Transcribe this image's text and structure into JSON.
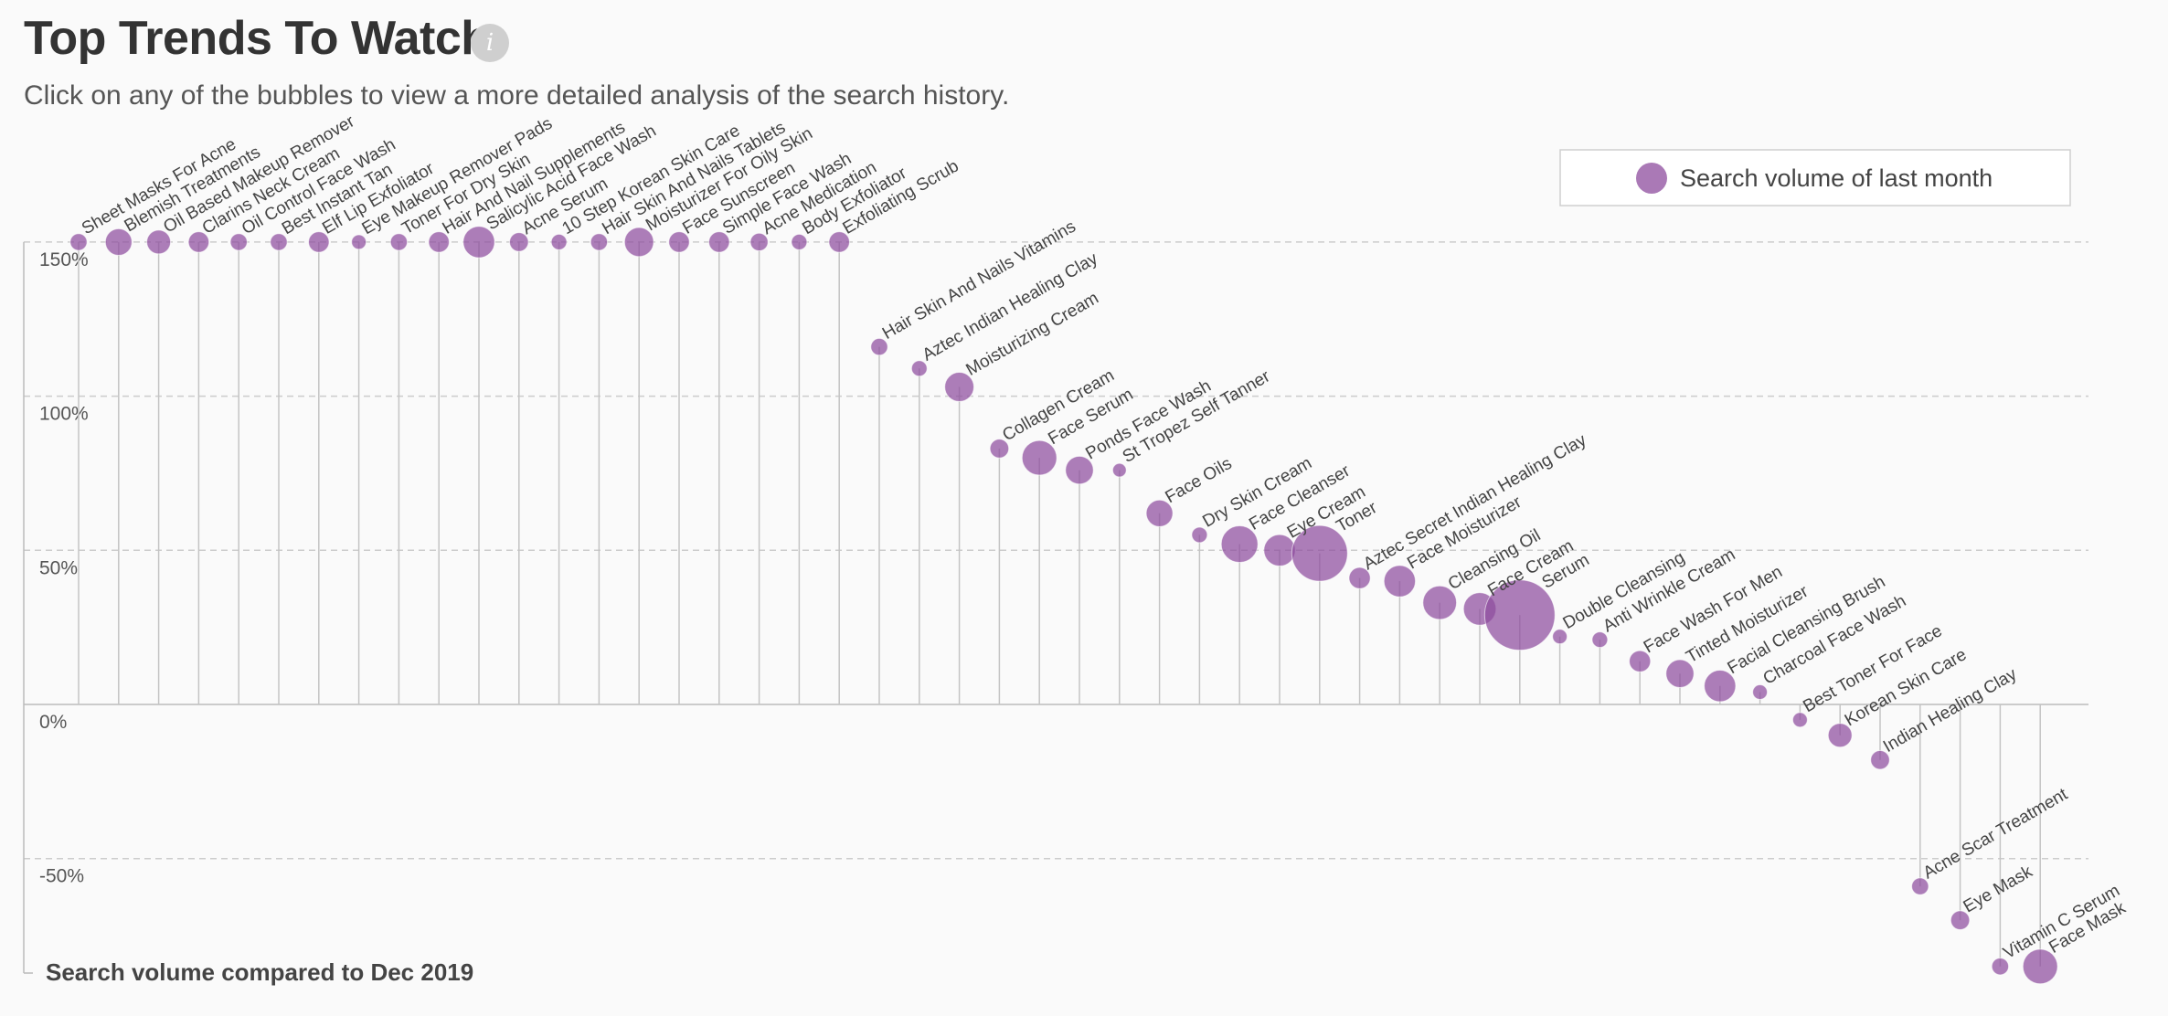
{
  "header": {
    "title": "Top Trends To Watch",
    "subtitle": "Click on any of the bubbles to view a more detailed analysis of the search history.",
    "info_icon": "info-icon"
  },
  "colors": {
    "bubble": "#8e4c9e",
    "grid": "#cccccc",
    "stem": "#c4c4c4",
    "axis": "#bbbbbb"
  },
  "chart_data": {
    "type": "scatter",
    "title": "Top Trends To Watch",
    "ylabel": "Search volume compared to Dec 2019",
    "ylim": [
      -85,
      150
    ],
    "yticks": [
      {
        "value": 150,
        "label": "150%"
      },
      {
        "value": 100,
        "label": "100%"
      },
      {
        "value": 50,
        "label": "50%"
      },
      {
        "value": 0,
        "label": "0%"
      },
      {
        "value": -50,
        "label": "-50%"
      }
    ],
    "grid": true,
    "legend": {
      "position": "top-right",
      "label": "Search volume of last month"
    },
    "points": [
      {
        "name": "Sheet Masks For Acne",
        "y": 150,
        "size": 2
      },
      {
        "name": "Blemish Treatments",
        "y": 150,
        "size": 5
      },
      {
        "name": "Oil Based Makeup Remover",
        "y": 150,
        "size": 4
      },
      {
        "name": "Clarins Neck Cream",
        "y": 150,
        "size": 3
      },
      {
        "name": "Oil Control Face Wash",
        "y": 150,
        "size": 2
      },
      {
        "name": "Best Instant Tan",
        "y": 150,
        "size": 2
      },
      {
        "name": "Elf Lip Exfoliator",
        "y": 150,
        "size": 3
      },
      {
        "name": "Eye Makeup Remover Pads",
        "y": 150,
        "size": 1.5
      },
      {
        "name": "Toner For Dry Skin",
        "y": 150,
        "size": 2
      },
      {
        "name": "Hair And Nail Supplements",
        "y": 150,
        "size": 3
      },
      {
        "name": "Salicylic Acid Face Wash",
        "y": 150,
        "size": 7
      },
      {
        "name": "Acne Serum",
        "y": 150,
        "size": 2.5
      },
      {
        "name": "10 Step Korean Skin Care",
        "y": 150,
        "size": 1.7
      },
      {
        "name": "Hair Skin And Nails Tablets",
        "y": 150,
        "size": 2
      },
      {
        "name": "Moisturizer For Oily Skin",
        "y": 150,
        "size": 6
      },
      {
        "name": "Face Sunscreen",
        "y": 150,
        "size": 3
      },
      {
        "name": "Simple Face Wash",
        "y": 150,
        "size": 3
      },
      {
        "name": "Acne Medication",
        "y": 150,
        "size": 2.2
      },
      {
        "name": "Body Exfoliator",
        "y": 150,
        "size": 1.7
      },
      {
        "name": "Exfoliating Scrub",
        "y": 150,
        "size": 3
      },
      {
        "name": "Hair Skin And Nails Vitamins",
        "y": 116,
        "size": 2
      },
      {
        "name": "Aztec Indian Healing Clay",
        "y": 109,
        "size": 1.7
      },
      {
        "name": "Moisturizing Cream",
        "y": 103,
        "size": 6
      },
      {
        "name": "Collagen Cream",
        "y": 83,
        "size": 2.5
      },
      {
        "name": "Face Serum",
        "y": 80,
        "size": 8.5
      },
      {
        "name": "Ponds Face Wash",
        "y": 76,
        "size": 5.5
      },
      {
        "name": "St Tropez Self Tanner",
        "y": 76,
        "size": 1.3
      },
      {
        "name": "Face Oils",
        "y": 62,
        "size": 5
      },
      {
        "name": "Dry Skin Cream",
        "y": 55,
        "size": 1.7
      },
      {
        "name": "Face Cleanser",
        "y": 52,
        "size": 9.5
      },
      {
        "name": "Eye Cream",
        "y": 50,
        "size": 7
      },
      {
        "name": "Toner",
        "y": 49,
        "size": 22
      },
      {
        "name": "Aztec Secret Indian Healing Clay",
        "y": 41,
        "size": 3.2
      },
      {
        "name": "Face Moisturizer",
        "y": 40,
        "size": 7
      },
      {
        "name": "Cleansing Oil",
        "y": 33,
        "size": 8
      },
      {
        "name": "Face Cream",
        "y": 31,
        "size": 7.5
      },
      {
        "name": "Serum",
        "y": 29,
        "size": 35
      },
      {
        "name": "Double Cleansing",
        "y": 22,
        "size": 1.5
      },
      {
        "name": "Anti Wrinkle Cream",
        "y": 21,
        "size": 1.7
      },
      {
        "name": "Face Wash For Men",
        "y": 14,
        "size": 3.2
      },
      {
        "name": "Tinted Moisturizer",
        "y": 10,
        "size": 5.5
      },
      {
        "name": "Facial Cleansing Brush",
        "y": 6,
        "size": 7
      },
      {
        "name": "Charcoal Face Wash",
        "y": 4,
        "size": 1.5
      },
      {
        "name": "Best Toner For Face",
        "y": -5,
        "size": 1.5
      },
      {
        "name": "Korean Skin Care",
        "y": -10,
        "size": 4
      },
      {
        "name": "Indian Healing Clay",
        "y": -18,
        "size": 2.5
      },
      {
        "name": "Acne Scar Treatment",
        "y": -59,
        "size": 2
      },
      {
        "name": "Eye Mask",
        "y": -70,
        "size": 2.5
      },
      {
        "name": "Vitamin C Serum",
        "y": -85,
        "size": 2
      },
      {
        "name": "Face Mask",
        "y": -85,
        "size": 8.5
      }
    ]
  }
}
